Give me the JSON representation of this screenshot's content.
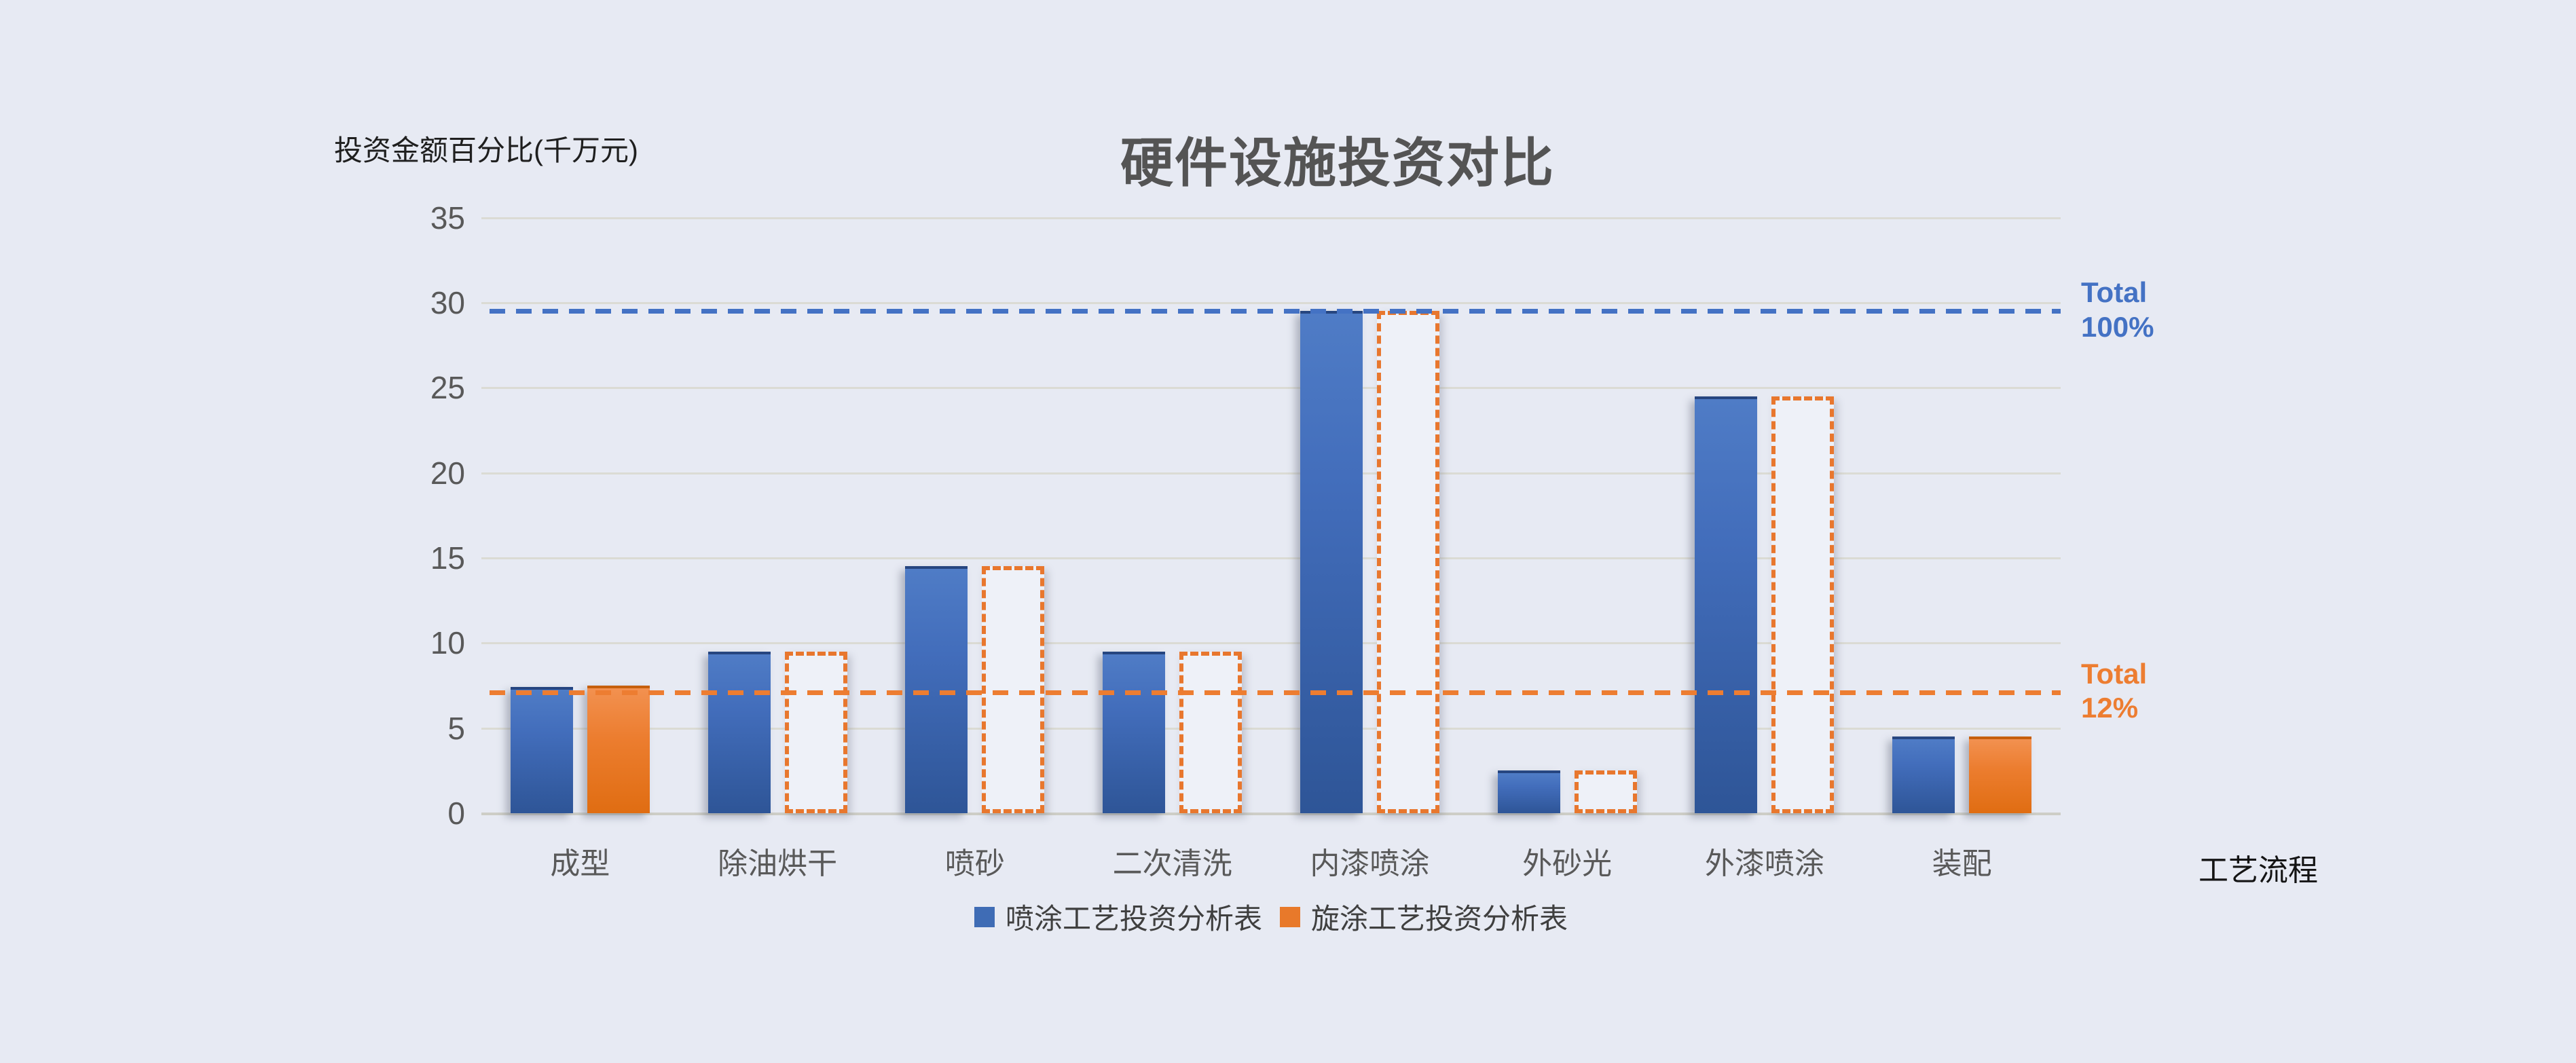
{
  "chart_data": {
    "type": "bar",
    "title": "硬件设施投资对比",
    "y_axis_title": "投资金额百分比(千万元)",
    "x_axis_title": "工艺流程",
    "categories": [
      "成型",
      "除油烘干",
      "喷砂",
      "二次清洗",
      "内漆喷涂",
      "外砂光",
      "外漆喷涂",
      "装配"
    ],
    "series": [
      {
        "name": "喷涂工艺投资分析表",
        "color": "#4472c4",
        "values": [
          7.4,
          9.5,
          14.5,
          9.5,
          29.5,
          2.5,
          24.5,
          4.5
        ],
        "point_styles": [
          "solid",
          "solid",
          "solid",
          "solid",
          "solid",
          "solid",
          "solid",
          "solid"
        ]
      },
      {
        "name": "旋涂工艺投资分析表",
        "color": "#ed7d31",
        "values": [
          7.5,
          9.5,
          14.5,
          9.5,
          29.5,
          2.5,
          24.5,
          4.5
        ],
        "point_styles": [
          "solid",
          "outline",
          "outline",
          "outline",
          "outline",
          "outline",
          "outline",
          "solid"
        ]
      }
    ],
    "reference_lines": [
      {
        "label": "Total\n100%",
        "value": 29.5,
        "color": "#4472c4"
      },
      {
        "label": "Total\n12%",
        "value": 7.1,
        "color": "#ed7d31"
      }
    ],
    "y_ticks": [
      0,
      5,
      10,
      15,
      20,
      25,
      30,
      35
    ],
    "ylim": [
      0,
      35
    ],
    "grid": true,
    "legend_position": "bottom",
    "background_color": "#e7eaf3",
    "gridline_color": "#dbdbd4"
  }
}
